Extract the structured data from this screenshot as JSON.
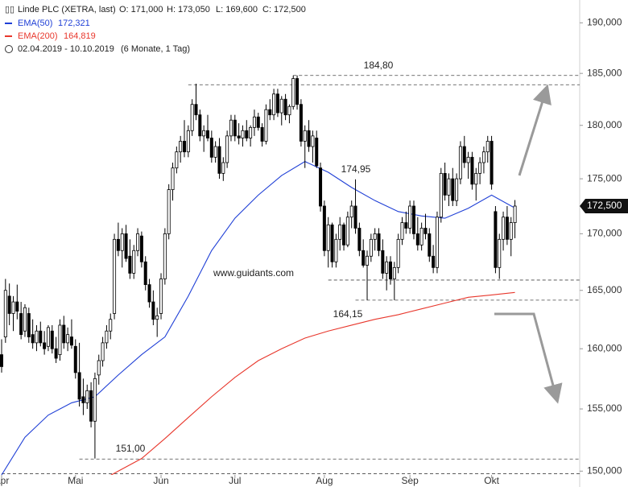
{
  "chart_data": {
    "type": "candlestick",
    "title": "Linde PLC (XETRA, last)",
    "ohlc_labels": [
      "O: 171,000",
      "H: 173,050",
      "L: 169,600",
      "C: 172,500"
    ],
    "range_text": "02.04.2019 - 10.10.2019",
    "range_note": "(6 Monate, 1 Tag)",
    "watermark": "www.guidants.com",
    "log_scale": true,
    "ylim": [
      149.7,
      192.3
    ],
    "yticks": [
      {
        "value": 150,
        "label": "150,000"
      },
      {
        "value": 155,
        "label": "155,000"
      },
      {
        "value": 160,
        "label": "160,000"
      },
      {
        "value": 165,
        "label": "165,000"
      },
      {
        "value": 170,
        "label": "170,000"
      },
      {
        "value": 175,
        "label": "175,000"
      },
      {
        "value": 180,
        "label": "180,000"
      },
      {
        "value": 185,
        "label": "185,000"
      },
      {
        "value": 190,
        "label": "190,000"
      }
    ],
    "last_price": {
      "value": 172.5,
      "label": "172,500"
    },
    "categories": [
      "Apr",
      null,
      null,
      null,
      null,
      null,
      null,
      null,
      null,
      null,
      null,
      null,
      null,
      null,
      null,
      null,
      null,
      null,
      null,
      "Mai",
      null,
      null,
      null,
      null,
      null,
      null,
      null,
      null,
      null,
      null,
      null,
      null,
      null,
      null,
      null,
      null,
      null,
      null,
      null,
      null,
      null,
      "Jun",
      null,
      null,
      null,
      null,
      null,
      null,
      null,
      null,
      null,
      null,
      null,
      null,
      null,
      null,
      null,
      null,
      null,
      null,
      "Jul",
      null,
      null,
      null,
      null,
      null,
      null,
      null,
      null,
      null,
      null,
      null,
      null,
      null,
      null,
      null,
      null,
      null,
      null,
      null,
      null,
      null,
      null,
      "Aug",
      null,
      null,
      null,
      null,
      null,
      null,
      null,
      null,
      null,
      null,
      null,
      null,
      null,
      null,
      null,
      null,
      null,
      null,
      null,
      null,
      null,
      "Sep",
      null,
      null,
      null,
      null,
      null,
      null,
      null,
      null,
      null,
      null,
      null,
      null,
      null,
      null,
      null,
      null,
      null,
      null,
      null,
      null,
      "Okt",
      null,
      null,
      null,
      null,
      null,
      null
    ],
    "open": [
      159.5,
      161,
      164.5,
      163,
      164,
      163,
      161.5,
      163,
      161.2,
      160.5,
      161.5,
      160.5,
      160.2,
      161.5,
      160,
      159.5,
      162,
      160.5,
      161,
      160.2,
      158,
      156,
      155.5,
      156.5,
      154,
      157.8,
      159,
      160.5,
      161.5,
      163,
      169.5,
      168.5,
      170,
      168,
      166.5,
      168.5,
      169.8,
      167.5,
      165.5,
      164,
      162.5,
      163,
      166,
      170,
      174,
      176,
      177.5,
      178.5,
      177.5,
      179.5,
      182,
      181,
      179,
      179.5,
      178.8,
      177,
      178,
      175.5,
      176.5,
      179,
      180.5,
      179,
      178.8,
      179.5,
      178.8,
      179.8,
      180.8,
      179.8,
      178.5,
      181.5,
      181,
      183,
      181.2,
      182.5,
      181,
      181.8,
      184.5,
      182,
      178.5,
      179.5,
      178,
      178.8,
      176,
      172.5,
      168.5,
      170.8,
      167.5,
      169.5,
      170.8,
      169,
      171.5,
      172.5,
      170.5,
      168.5,
      167.2,
      168,
      169.5,
      170,
      168.5,
      166.5,
      167.5,
      166,
      167,
      169.5,
      171,
      170.5,
      172.5,
      170,
      169,
      170.5,
      170,
      168,
      167,
      171.5,
      175.5,
      173.5,
      175,
      173,
      175,
      178,
      176.5,
      177,
      174.5,
      175.5,
      176.5,
      177.5,
      178.5,
      172,
      167,
      169.5,
      171.5,
      169.5,
      171
    ],
    "high": [
      160.8,
      166,
      165.6,
      164.5,
      165.5,
      164,
      163.8,
      163.5,
      162.5,
      162,
      162.3,
      161.5,
      162,
      162,
      161,
      162.5,
      162.8,
      161.8,
      162.5,
      160.8,
      160.5,
      157.5,
      157,
      157.2,
      158,
      159.5,
      161,
      162,
      163,
      170,
      171,
      170.5,
      170.8,
      169.5,
      169,
      170.5,
      170.2,
      168,
      166,
      165,
      163.5,
      166.5,
      170.5,
      174.5,
      176.5,
      178,
      179,
      180.5,
      180,
      182.5,
      184,
      181.5,
      180,
      181,
      179.5,
      178.5,
      178.8,
      177,
      179.5,
      181,
      181,
      180.2,
      180,
      180.5,
      180,
      181.5,
      181.2,
      180.2,
      182,
      182.5,
      183.5,
      183.5,
      182.8,
      183,
      182,
      184.8,
      184.8,
      182.5,
      180,
      180.5,
      179.5,
      179.5,
      176.5,
      173,
      171.5,
      171,
      170,
      171.5,
      171,
      172,
      173,
      174.95,
      171,
      169.5,
      168.5,
      170,
      170.5,
      170.5,
      169.5,
      168,
      168,
      167.5,
      170,
      171.5,
      172,
      173,
      173,
      171.5,
      171,
      171.8,
      170.5,
      169,
      172,
      176,
      176.5,
      175.5,
      176,
      175.5,
      178.5,
      179,
      177.5,
      177.5,
      176,
      177,
      178,
      179,
      179,
      172.5,
      170,
      172,
      172.5,
      171.5,
      173.05
    ],
    "low": [
      158,
      160.5,
      162,
      161.5,
      162.5,
      160.8,
      161,
      160.5,
      160,
      159.8,
      160.2,
      159.5,
      159.8,
      159.6,
      158.8,
      159,
      160,
      159.8,
      160,
      157.5,
      155.2,
      154.5,
      155,
      153.5,
      151,
      157,
      158.5,
      160,
      160.8,
      162.5,
      168,
      167,
      167.5,
      166,
      166,
      168,
      167,
      165,
      163.5,
      162,
      161,
      162.5,
      165.5,
      169.5,
      173,
      175.5,
      176.5,
      177,
      177,
      179,
      180.5,
      178.5,
      177.5,
      178.5,
      176.5,
      176.5,
      175,
      174.8,
      176,
      178.5,
      178.5,
      178.2,
      178,
      178.5,
      178,
      179,
      179.5,
      178,
      178.2,
      180.5,
      180.5,
      180.8,
      180,
      180.5,
      180.2,
      181.5,
      181.5,
      178,
      176,
      177.5,
      176.5,
      176,
      172,
      168,
      167,
      167,
      167,
      168.5,
      168.5,
      168.8,
      170.5,
      170,
      168,
      167,
      164.15,
      167.5,
      168.5,
      168,
      166,
      165,
      165.5,
      164.15,
      166.5,
      169,
      170,
      170,
      169.5,
      168.5,
      168.5,
      169.5,
      167.5,
      166.5,
      166.5,
      171,
      173,
      172.5,
      172.5,
      172.5,
      174.5,
      176,
      175,
      174,
      173,
      174.5,
      175.5,
      176.5,
      174,
      166.5,
      166,
      168.5,
      169,
      168,
      169.6
    ],
    "close": [
      158.5,
      165,
      163,
      164,
      163.2,
      161.2,
      163.5,
      161,
      160.5,
      161.5,
      160.5,
      160,
      161.8,
      160,
      159.2,
      162,
      160.5,
      161.2,
      160.3,
      158,
      155.8,
      155.5,
      156.5,
      154,
      157.5,
      159,
      160.5,
      161.5,
      162.5,
      169.5,
      168.5,
      170,
      167.8,
      166.5,
      168.5,
      170,
      167.5,
      165.5,
      164,
      162.5,
      162.8,
      166,
      170,
      174,
      176,
      177.5,
      178.5,
      177.5,
      179.5,
      182,
      181,
      179,
      179.5,
      178.8,
      177,
      178,
      175.5,
      176.5,
      179,
      180.5,
      179,
      178.8,
      179.5,
      178.8,
      179.8,
      180.8,
      179.8,
      178.5,
      181.5,
      181,
      183,
      181.2,
      182.5,
      181,
      181.8,
      184.5,
      182,
      178.5,
      179.5,
      178,
      179,
      176.2,
      172.5,
      168.5,
      170.8,
      167.5,
      169.5,
      170.8,
      169,
      171.5,
      172.5,
      170.5,
      168.5,
      167.2,
      168,
      169.5,
      170,
      168.5,
      166.5,
      167.5,
      166,
      167,
      169.5,
      171,
      170.5,
      172.5,
      170,
      169,
      170.5,
      170,
      168,
      167,
      171.5,
      175.5,
      173.5,
      175,
      173,
      175,
      178,
      176.5,
      177,
      174.5,
      175.5,
      176.5,
      177.5,
      178.5,
      174.5,
      167,
      169.5,
      171.5,
      169.5,
      171,
      172.5
    ],
    "series": [
      {
        "name": "EMA(50)",
        "last_label": "172,321",
        "color": "#1f3fd6",
        "x": [
          0,
          6,
          12,
          18,
          24,
          30,
          36,
          42,
          48,
          54,
          60,
          66,
          72,
          78,
          84,
          90,
          96,
          102,
          108,
          114,
          120,
          126,
          132
        ],
        "values": [
          149.7,
          152.7,
          154.5,
          155.5,
          156,
          157.8,
          159.5,
          161,
          164.5,
          168.5,
          171.4,
          173.5,
          175.3,
          176.6,
          175.6,
          174.2,
          173,
          172,
          171.6,
          171.4,
          172.3,
          173.5,
          172.321
        ]
      },
      {
        "name": "EMA(200)",
        "last_label": "164,819",
        "color": "#e8372c",
        "x": [
          24,
          30,
          36,
          42,
          48,
          54,
          60,
          66,
          72,
          78,
          84,
          90,
          96,
          102,
          108,
          114,
          120,
          126,
          132
        ],
        "values": [
          149,
          150,
          151,
          152.6,
          154.3,
          156,
          157.6,
          159,
          160,
          160.9,
          161.5,
          162,
          162.5,
          162.9,
          163.4,
          163.9,
          164.4,
          164.6,
          164.819
        ]
      }
    ],
    "levels": [
      {
        "value": 184.8,
        "start": 75
      },
      {
        "value": 183.9,
        "start": 48
      },
      {
        "value": 165.9,
        "start": 84
      },
      {
        "value": 164.15,
        "start": 91
      },
      {
        "value": 150.96,
        "start": 20
      },
      {
        "value": 149.8,
        "start": 0
      }
    ],
    "annotations": [
      "184,80",
      "174,95",
      "164,15",
      "151,00"
    ]
  }
}
